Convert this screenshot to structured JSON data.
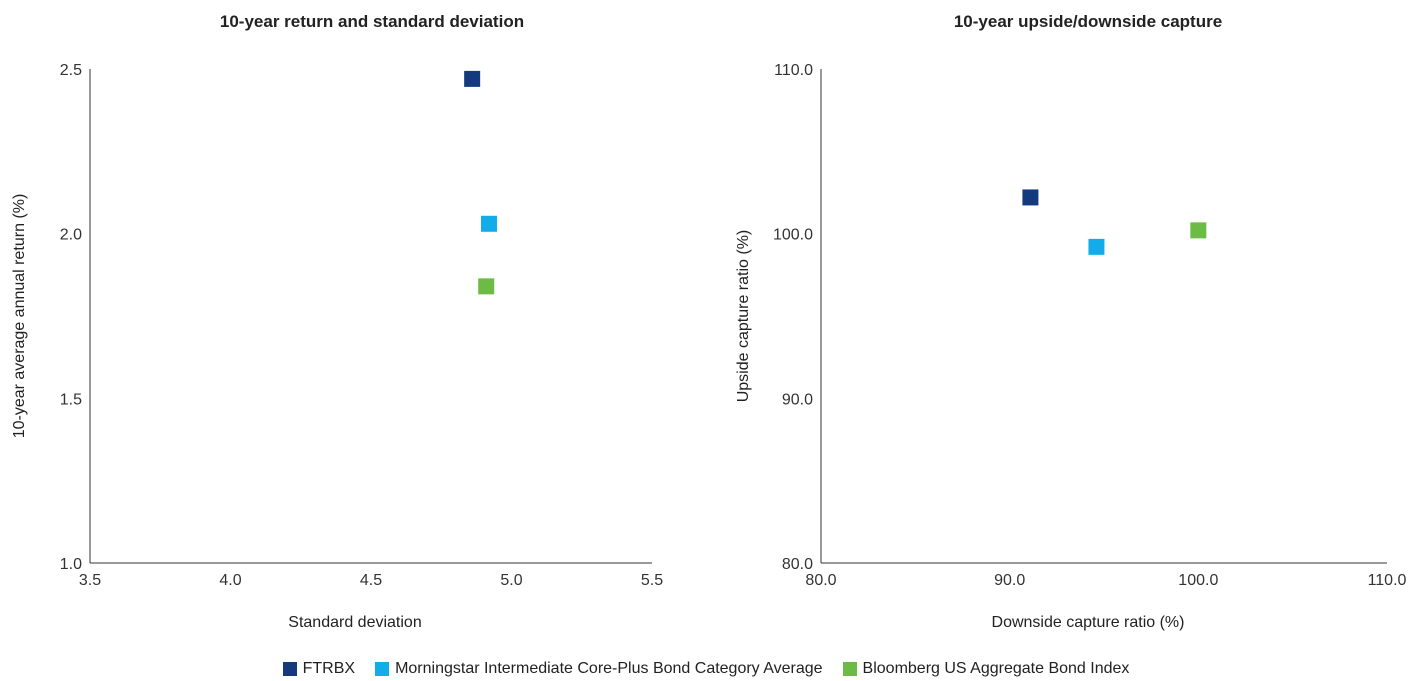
{
  "chart_data": [
    {
      "type": "scatter",
      "title": "10-year return and standard deviation",
      "xlabel": "Standard deviation",
      "ylabel": "10-year average annual return (%)",
      "xlim": [
        3.5,
        5.5
      ],
      "ylim": [
        1.0,
        2.5
      ],
      "xticks": [
        "3.5",
        "4.0",
        "4.5",
        "5.0",
        "5.5"
      ],
      "yticks": [
        "1.0",
        "1.5",
        "2.0",
        "2.5"
      ],
      "grid": false,
      "series": [
        {
          "name": "FTRBX",
          "color": "#133a7c",
          "x": [
            4.86
          ],
          "y": [
            2.47
          ]
        },
        {
          "name": "Morningstar Intermediate Core-Plus Bond Category Average",
          "color": "#12ade8",
          "x": [
            4.92
          ],
          "y": [
            2.03
          ]
        },
        {
          "name": "Bloomberg US Aggregate Bond Index",
          "color": "#6cbb45",
          "x": [
            4.91
          ],
          "y": [
            1.84
          ]
        }
      ]
    },
    {
      "type": "scatter",
      "title": "10-year upside/downside capture",
      "xlabel": "Downside capture ratio (%)",
      "ylabel": "Upside capture ratio (%)",
      "xlim": [
        80.0,
        110.0
      ],
      "ylim": [
        80.0,
        110.0
      ],
      "xticks": [
        "80.0",
        "90.0",
        "100.0",
        "110.0"
      ],
      "yticks": [
        "80.0",
        "90.0",
        "100.0",
        "110.0"
      ],
      "grid": false,
      "series": [
        {
          "name": "FTRBX",
          "color": "#133a7c",
          "x": [
            91.1
          ],
          "y": [
            102.2
          ]
        },
        {
          "name": "Morningstar Intermediate Core-Plus Bond Category Average",
          "color": "#12ade8",
          "x": [
            94.6
          ],
          "y": [
            99.2
          ]
        },
        {
          "name": "Bloomberg US Aggregate Bond Index",
          "color": "#6cbb45",
          "x": [
            100.0
          ],
          "y": [
            100.2
          ]
        }
      ]
    }
  ],
  "legend": {
    "items": [
      {
        "label": "FTRBX",
        "color": "#133a7c"
      },
      {
        "label": "Morningstar Intermediate Core-Plus Bond Category Average",
        "color": "#12ade8"
      },
      {
        "label": "Bloomberg US Aggregate Bond Index",
        "color": "#6cbb45"
      }
    ]
  }
}
